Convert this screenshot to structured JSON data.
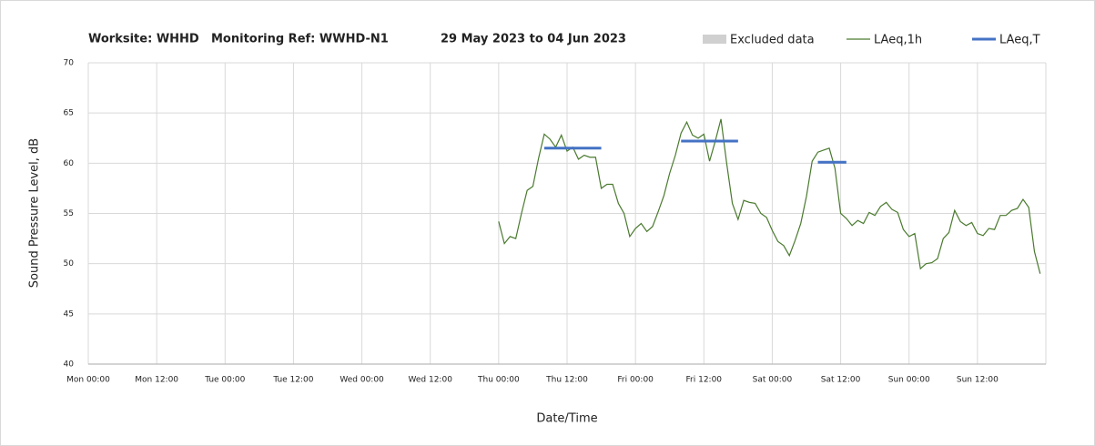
{
  "chart_data": {
    "type": "line",
    "title": [
      "Worksite: WHHD",
      "Monitoring Ref: WWHD-N1",
      "29 May 2023 to 04 Jun 2023"
    ],
    "xlabel": "Date/Time",
    "ylabel": "Sound Pressure Level, dB",
    "xlim": [
      0,
      168
    ],
    "ylim": [
      40,
      70
    ],
    "yticks": [
      40,
      45,
      50,
      55,
      60,
      65,
      70
    ],
    "xticks": [
      {
        "value": 0,
        "label": "Mon 00:00"
      },
      {
        "value": 12,
        "label": "Mon 12:00"
      },
      {
        "value": 24,
        "label": "Tue 00:00"
      },
      {
        "value": 36,
        "label": "Tue 12:00"
      },
      {
        "value": 48,
        "label": "Wed 00:00"
      },
      {
        "value": 60,
        "label": "Wed 12:00"
      },
      {
        "value": 72,
        "label": "Thu 00:00"
      },
      {
        "value": 84,
        "label": "Thu 12:00"
      },
      {
        "value": 96,
        "label": "Fri 00:00"
      },
      {
        "value": 108,
        "label": "Fri 12:00"
      },
      {
        "value": 120,
        "label": "Sat 00:00"
      },
      {
        "value": 132,
        "label": "Sat 12:00"
      },
      {
        "value": 144,
        "label": "Sun 00:00"
      },
      {
        "value": 156,
        "label": "Sun 12:00"
      }
    ],
    "grid": true,
    "legend_items": [
      {
        "name": "Excluded data",
        "color": "#d0d0d0"
      }
    ],
    "series": [
      {
        "name": "LAeq,1h",
        "color": "#4a7a2e",
        "x": [
          72,
          73,
          74,
          75,
          76,
          77,
          78,
          79,
          80,
          81,
          82,
          83,
          84,
          85,
          86,
          87,
          88,
          89,
          90,
          91,
          92,
          93,
          94,
          95,
          96,
          97,
          98,
          99,
          100,
          101,
          102,
          103,
          104,
          105,
          106,
          107,
          108,
          109,
          110,
          111,
          112,
          113,
          114,
          115,
          116,
          117,
          118,
          119,
          120,
          121,
          122,
          123,
          124,
          125,
          126,
          127,
          128,
          129,
          130,
          131,
          132,
          133,
          134,
          135,
          136,
          137,
          138,
          139,
          140,
          141,
          142,
          143,
          144,
          145,
          146,
          147,
          148,
          149,
          150,
          151,
          152,
          153,
          154,
          155,
          156,
          157,
          158,
          159,
          160,
          161,
          162,
          163,
          164,
          165,
          166,
          167
        ],
        "values": [
          54.2,
          52.0,
          52.7,
          52.5,
          55,
          57.3,
          57.7,
          60.5,
          62.9,
          62.4,
          61.6,
          62.8,
          61.2,
          61.6,
          60.4,
          60.8,
          60.6,
          60.6,
          57.5,
          57.9,
          57.9,
          56,
          55,
          52.7,
          53.5,
          54,
          53.2,
          53.7,
          55.2,
          56.8,
          59,
          60.8,
          63,
          64.1,
          62.8,
          62.5,
          62.9,
          60.2,
          62.2,
          64.4,
          60,
          56,
          54.4,
          56.3,
          56.1,
          56,
          55,
          54.6,
          53.3,
          52.2,
          51.8,
          50.8,
          52.3,
          54,
          56.7,
          60.2,
          61.1,
          61.3,
          61.5,
          59.5,
          55,
          54.5,
          53.8,
          54.3,
          54,
          55.1,
          54.8,
          55.7,
          56.1,
          55.4,
          55.1,
          53.4,
          52.7,
          53,
          49.5,
          50,
          50.1,
          50.5,
          52.5,
          53.1,
          55.3,
          54.2,
          53.8,
          54.1,
          53,
          52.8,
          53.5,
          53.4,
          54.8,
          54.8,
          55.3,
          55.5,
          56.4,
          55.6,
          51.2,
          49
        ]
      },
      {
        "name": "LAeq,T",
        "color": "#4472c4",
        "segments": [
          {
            "x": [
              80,
              90
            ],
            "value": 61.5
          },
          {
            "x": [
              104,
              114
            ],
            "value": 62.2
          },
          {
            "x": [
              128,
              133
            ],
            "value": 60.1
          }
        ]
      }
    ]
  }
}
